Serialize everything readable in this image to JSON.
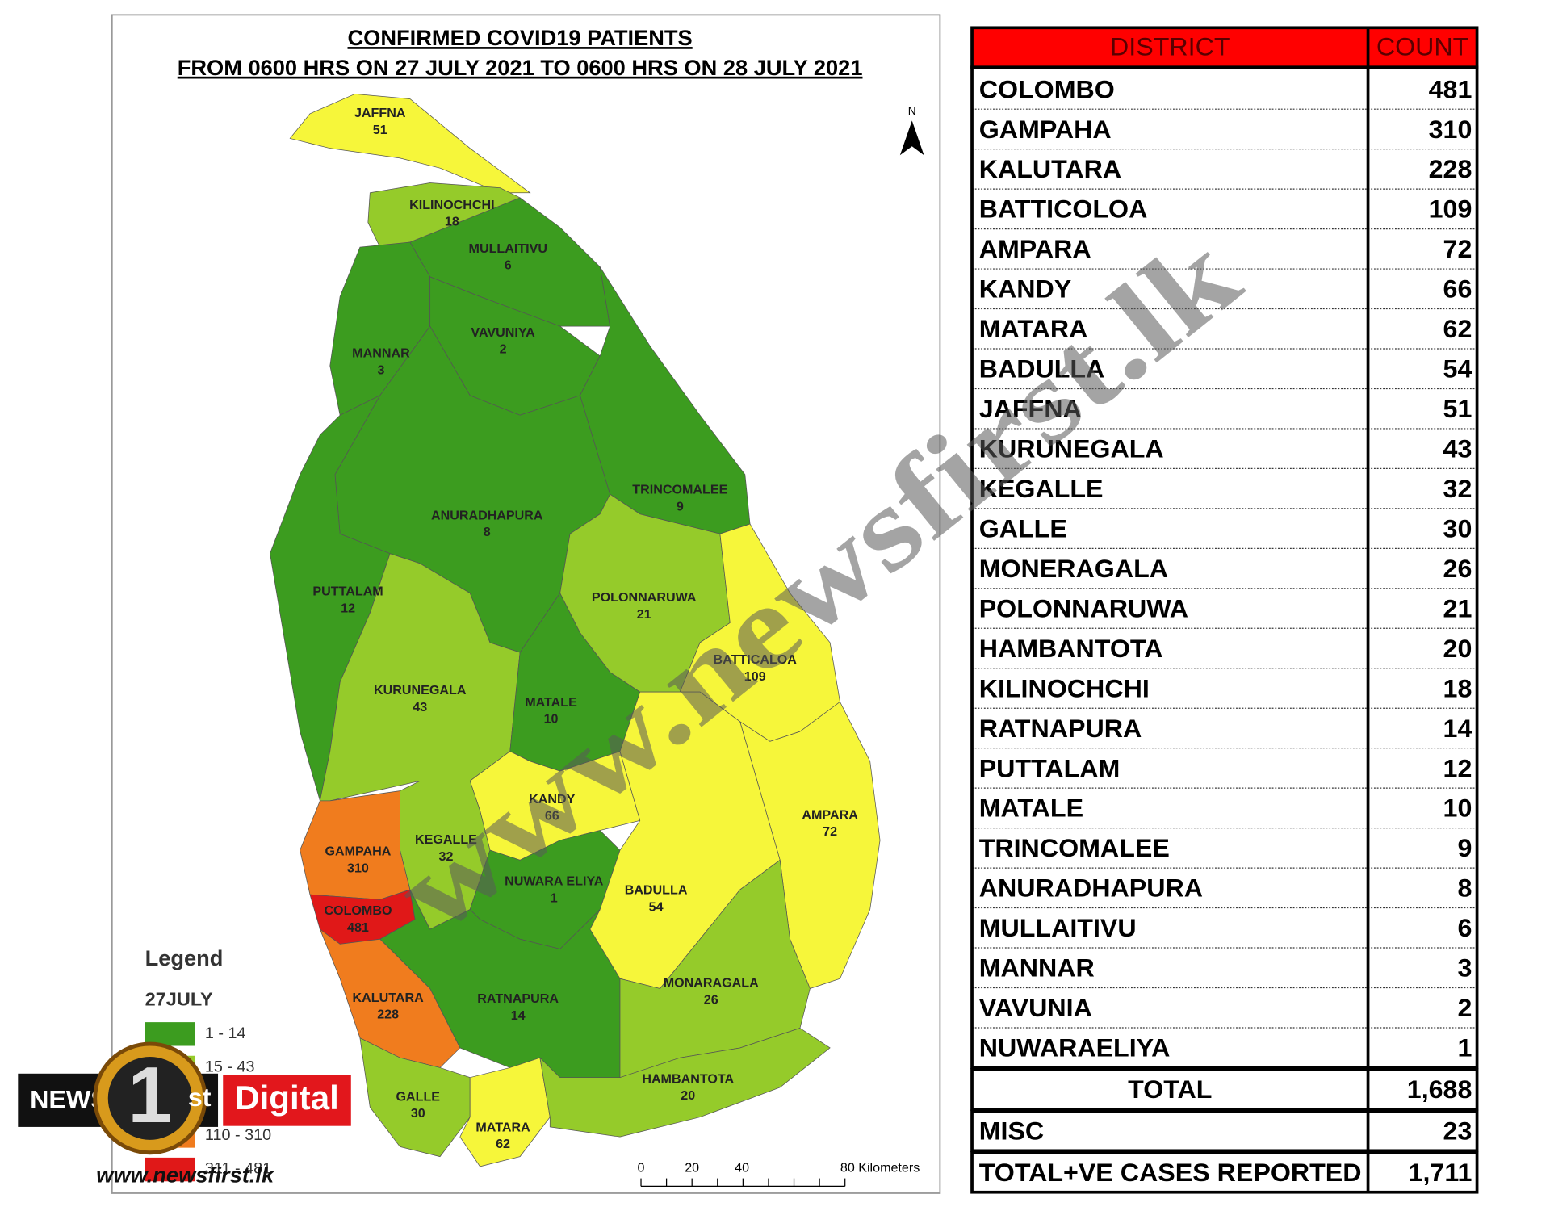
{
  "map": {
    "title": [
      "CONFIRMED COVID19 PATIENTS",
      "FROM 0600 HRS ON 27 JULY 2021 TO 0600 HRS ON 28 JULY 2021"
    ],
    "north": "N",
    "districts": [
      {
        "name": "JAFFNA",
        "count": 51,
        "color": "#f6f63a"
      },
      {
        "name": "KILINOCHCHI",
        "count": 18,
        "color": "#95cb2a"
      },
      {
        "name": "MULLAITIVU",
        "count": 6,
        "color": "#3c9c1f"
      },
      {
        "name": "MANNAR",
        "count": 3,
        "color": "#3c9c1f"
      },
      {
        "name": "VAVUNIYA",
        "count": 2,
        "color": "#3c9c1f"
      },
      {
        "name": "TRINCOMALEE",
        "count": 9,
        "color": "#3c9c1f"
      },
      {
        "name": "ANURADHAPURA",
        "count": 8,
        "color": "#3c9c1f"
      },
      {
        "name": "PUTTALAM",
        "count": 12,
        "color": "#3c9c1f"
      },
      {
        "name": "POLONNARUWA",
        "count": 21,
        "color": "#95cb2a"
      },
      {
        "name": "BATTICALOA",
        "count": 109,
        "color": "#f6f63a"
      },
      {
        "name": "AMPARA",
        "count": 72,
        "color": "#f6f63a"
      },
      {
        "name": "KURUNEGALA",
        "count": 43,
        "color": "#95cb2a"
      },
      {
        "name": "MATALE",
        "count": 10,
        "color": "#3c9c1f"
      },
      {
        "name": "KANDY",
        "count": 66,
        "color": "#f6f63a"
      },
      {
        "name": "KEGALLE",
        "count": 32,
        "color": "#95cb2a"
      },
      {
        "name": "GAMPAHA",
        "count": 310,
        "color": "#f07c1e"
      },
      {
        "name": "COLOMBO",
        "count": 481,
        "color": "#e01818"
      },
      {
        "name": "NUWARA ELIYA",
        "count": 1,
        "color": "#3c9c1f"
      },
      {
        "name": "BADULLA",
        "count": 54,
        "color": "#f6f63a"
      },
      {
        "name": "RATNAPURA",
        "count": 14,
        "color": "#3c9c1f"
      },
      {
        "name": "KALUTARA",
        "count": 228,
        "color": "#f07c1e"
      },
      {
        "name": "MONARAGALA",
        "count": 26,
        "color": "#95cb2a"
      },
      {
        "name": "GALLE",
        "count": 30,
        "color": "#95cb2a"
      },
      {
        "name": "MATARA",
        "count": 62,
        "color": "#f6f63a"
      },
      {
        "name": "HAMBANTOTA",
        "count": 20,
        "color": "#95cb2a"
      }
    ],
    "legend": {
      "title": "Legend",
      "subtitle": "27JULY",
      "items": [
        {
          "label": "1 - 14",
          "color": "#3c9c1f"
        },
        {
          "label": "15 - 43",
          "color": "#95cb2a"
        },
        {
          "label": "110 - 310",
          "color": "#f07c1e"
        },
        {
          "label": "311 - 481",
          "color": "#e01818"
        }
      ]
    },
    "scale": {
      "ticks": [
        "0",
        "20",
        "40"
      ],
      "unit": "80 Kilometers"
    }
  },
  "table": {
    "headers": [
      "DISTRICT",
      "COUNT"
    ],
    "rows": [
      [
        "COLOMBO",
        481
      ],
      [
        "GAMPAHA",
        310
      ],
      [
        "KALUTARA",
        228
      ],
      [
        "BATTICOLOA",
        109
      ],
      [
        "AMPARA",
        72
      ],
      [
        "KANDY",
        66
      ],
      [
        "MATARA",
        62
      ],
      [
        "BADULLA",
        54
      ],
      [
        "JAFFNA",
        51
      ],
      [
        "KURUNEGALA",
        43
      ],
      [
        "KEGALLE",
        32
      ],
      [
        "GALLE",
        30
      ],
      [
        "MONERAGALA",
        26
      ],
      [
        "POLONNARUWA",
        21
      ],
      [
        "HAMBANTOTA",
        20
      ],
      [
        "KILINOCHCHI",
        18
      ],
      [
        "RATNAPURA",
        14
      ],
      [
        "PUTTALAM",
        12
      ],
      [
        "MATALE",
        10
      ],
      [
        "TRINCOMALEE",
        9
      ],
      [
        "ANURADHAPURA",
        8
      ],
      [
        "MULLAITIVU",
        6
      ],
      [
        "MANNAR",
        3
      ],
      [
        "VAVUNIA",
        2
      ],
      [
        "NUWARAELIYA",
        1
      ]
    ],
    "summary": [
      [
        "TOTAL",
        "1,688"
      ],
      [
        "MISC",
        23
      ],
      [
        "TOTAL+VE CASES REPORTED",
        "1,711"
      ]
    ]
  },
  "watermark": "www.newsfirst.lk",
  "logo": {
    "news": "NEWS",
    "one": "1",
    "st": "st",
    "digital": "Digital",
    "url": "www.newsfirst.lk"
  }
}
